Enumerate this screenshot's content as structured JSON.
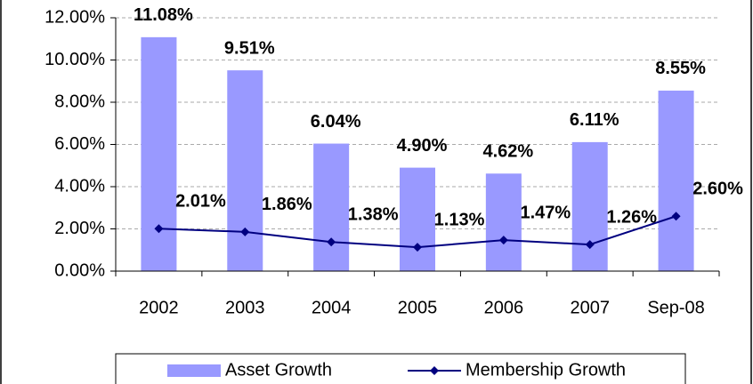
{
  "chart_data": {
    "type": "bar_line",
    "categories": [
      "2002",
      "2003",
      "2004",
      "2005",
      "2006",
      "2007",
      "Sep-08"
    ],
    "series": [
      {
        "name": "Asset Growth",
        "type": "bar",
        "color": "#9999ff",
        "values": [
          11.08,
          9.51,
          6.04,
          4.9,
          4.62,
          6.11,
          8.55
        ],
        "value_labels": [
          "11.08%",
          "9.51%",
          "6.04%",
          "4.90%",
          "4.62%",
          "6.11%",
          "8.55%"
        ]
      },
      {
        "name": "Membership Growth",
        "type": "line",
        "color": "#000080",
        "values": [
          2.01,
          1.86,
          1.38,
          1.13,
          1.47,
          1.26,
          2.6
        ],
        "value_labels": [
          "2.01%",
          "1.86%",
          "1.38%",
          "1.13%",
          "1.47%",
          "1.26%",
          "2.60%"
        ]
      }
    ],
    "ylim": [
      0,
      12
    ],
    "yticks": [
      {
        "value": 0,
        "label": "0.00%"
      },
      {
        "value": 2,
        "label": "2.00%"
      },
      {
        "value": 4,
        "label": "4.00%"
      },
      {
        "value": 6,
        "label": "6.00%"
      },
      {
        "value": 8,
        "label": "8.00%"
      },
      {
        "value": 10,
        "label": "10.00%"
      },
      {
        "value": 12,
        "label": "12.00%"
      }
    ],
    "grid": true,
    "legend": "bottom"
  }
}
